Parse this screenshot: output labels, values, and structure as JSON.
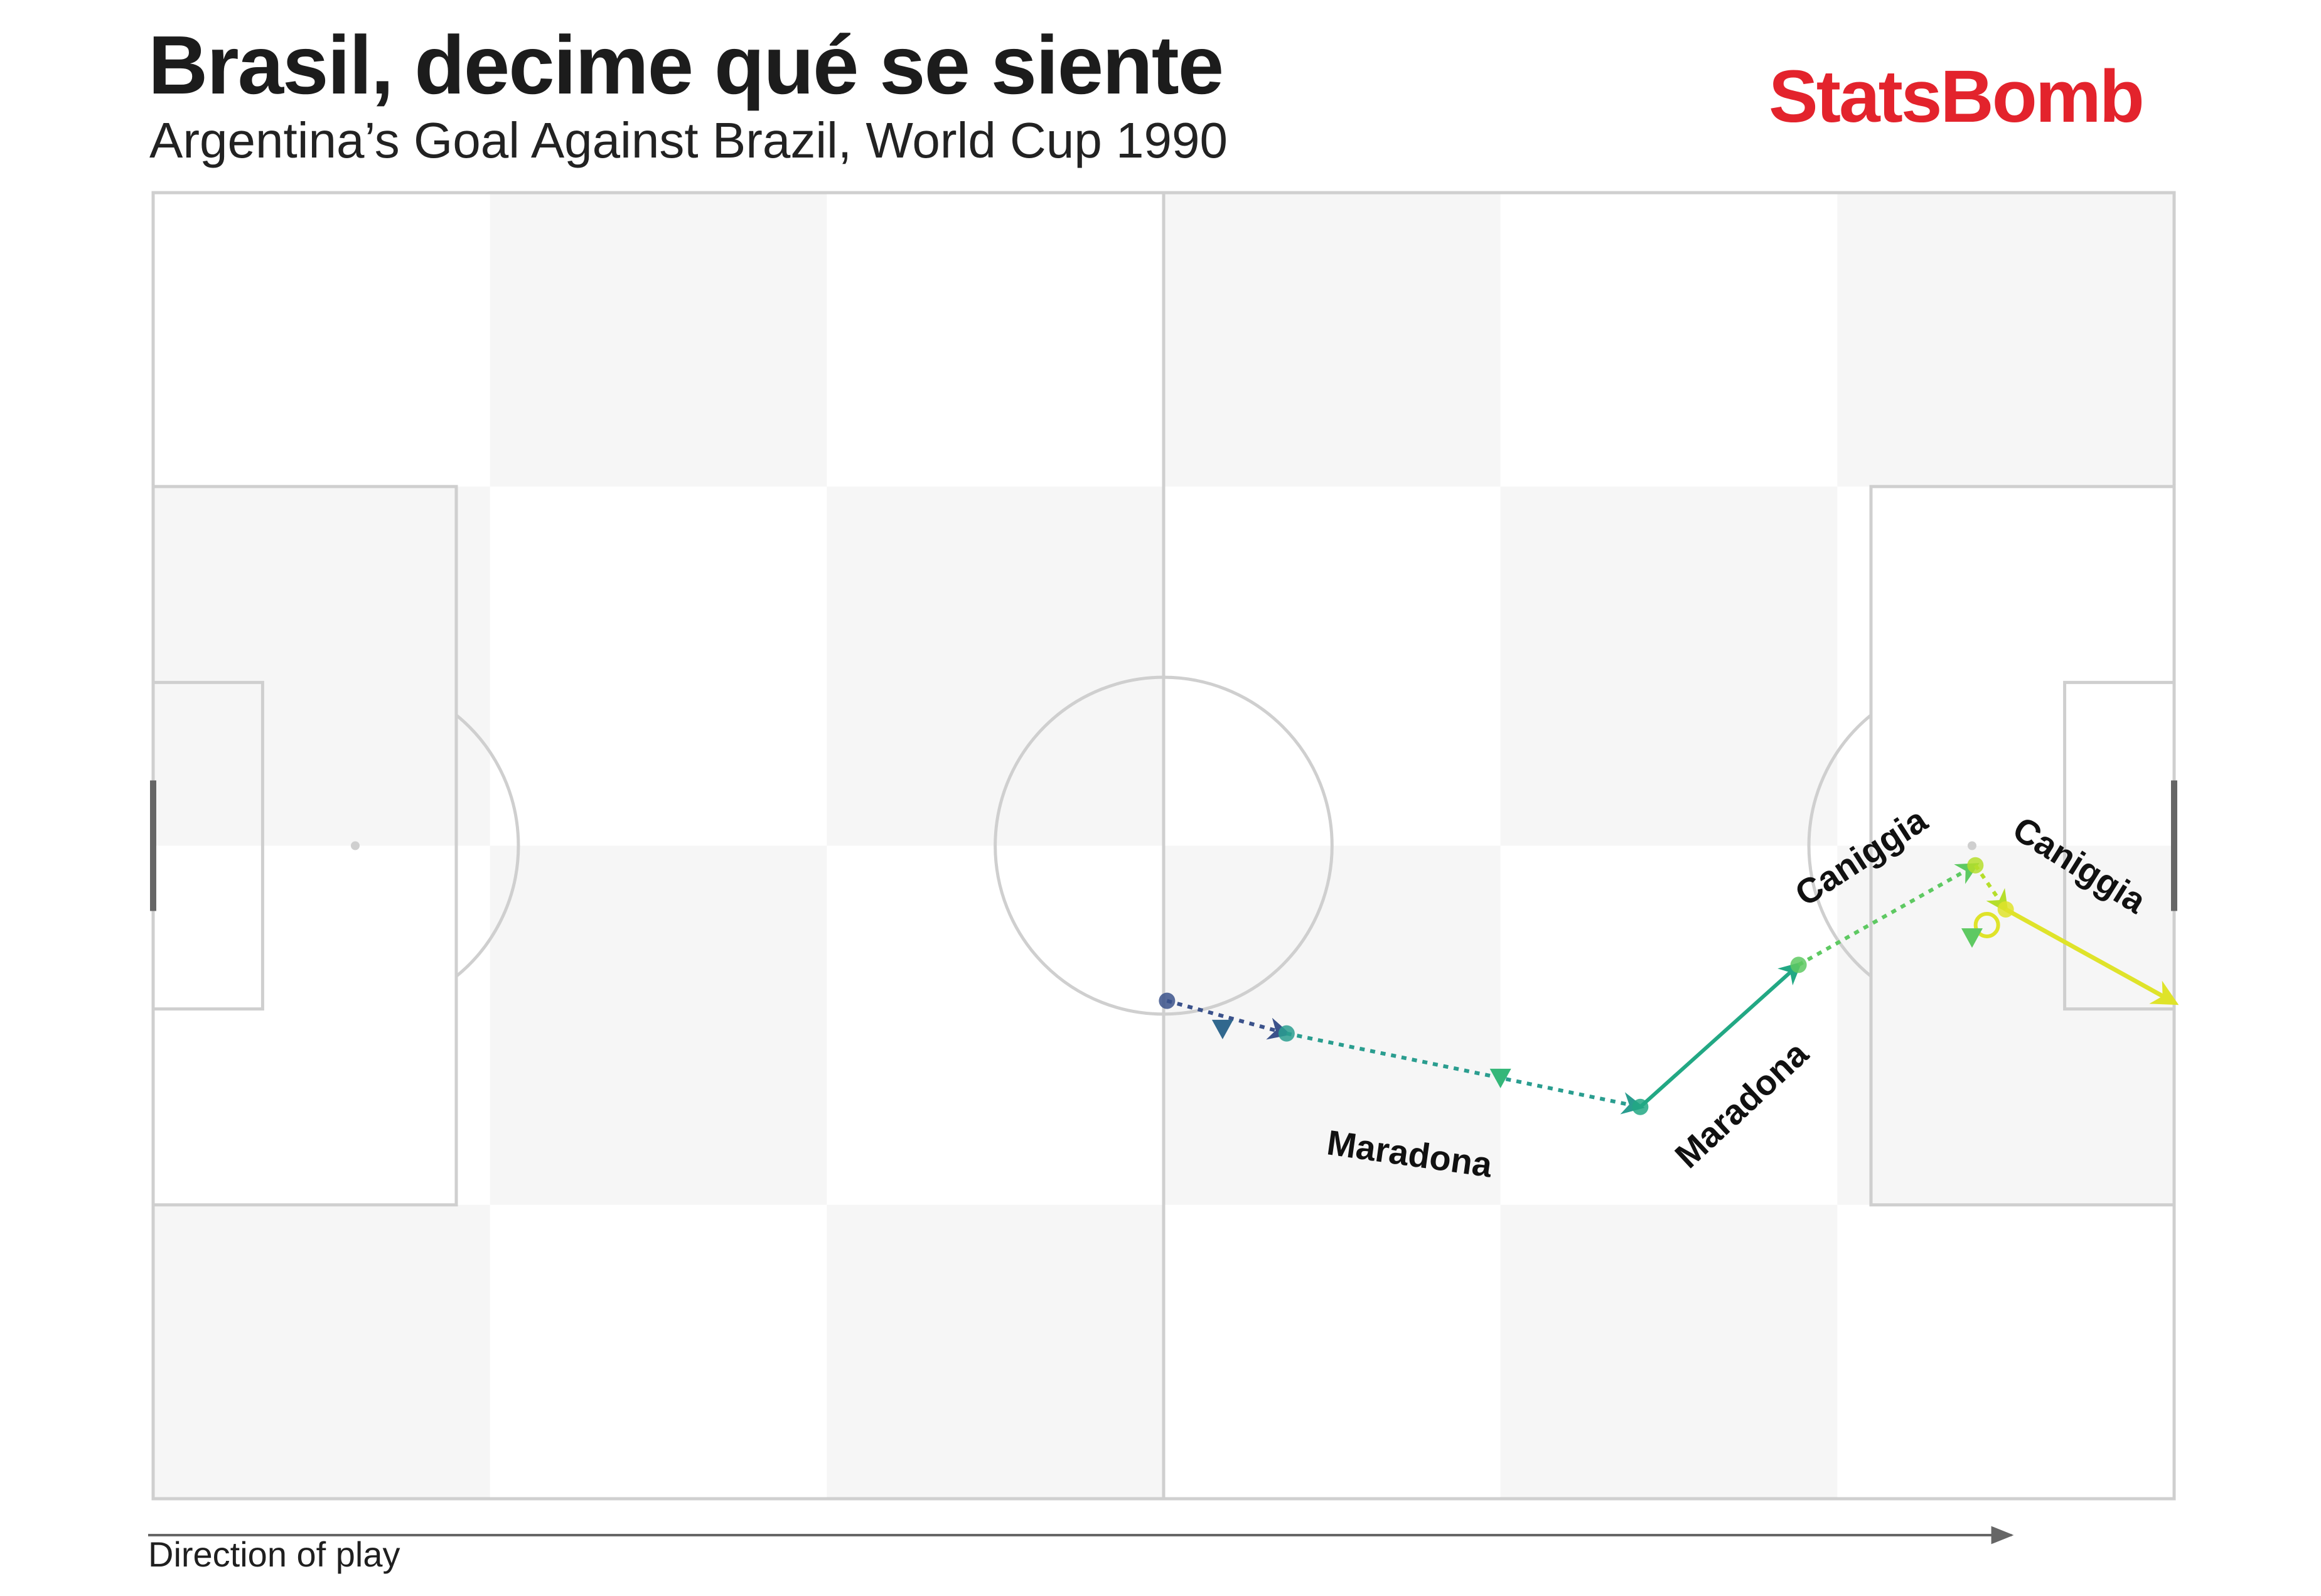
{
  "header": {
    "title": "Brasil, decime qué se siente",
    "subtitle": "Argentina’s Goal Against Brazil, World Cup 1990",
    "logo_text": "StatsBomb",
    "logo_color": "#e3232c"
  },
  "footer": {
    "direction_label": "Direction of play"
  },
  "pitch": {
    "length": 120,
    "width": 80,
    "line_color": "#cfcfcf",
    "stripe_color": "#f6f6f6",
    "grass_color": "#ffffff"
  },
  "chart_data": {
    "type": "pass_map",
    "coordinate_system": "StatsBomb 120x80 (x toward opponent goal, y top to bottom)",
    "colormap": "viridis",
    "events": [
      {
        "type": "carry",
        "player": "Maradona",
        "start": [
          60.2,
          49.5
        ],
        "end": [
          67.3,
          51.5
        ],
        "color": "#3b528b"
      },
      {
        "type": "carry",
        "player": "Maradona",
        "start": [
          67.3,
          51.5
        ],
        "end": [
          88.3,
          56.0
        ],
        "color": "#2a9d8f"
      },
      {
        "type": "pass",
        "player": "Maradona",
        "start": [
          88.3,
          56.0
        ],
        "end": [
          97.7,
          47.3
        ],
        "color": "#22a884"
      },
      {
        "type": "carry",
        "player": "Caniggia",
        "start": [
          97.7,
          47.3
        ],
        "end": [
          108.2,
          41.2
        ],
        "color": "#5ec962"
      },
      {
        "type": "carry",
        "player": "Caniggia",
        "start": [
          108.2,
          41.2
        ],
        "end": [
          110.0,
          43.9
        ],
        "color": "#b5de2b"
      },
      {
        "type": "shot",
        "player": "Caniggia",
        "start": [
          110.0,
          43.9
        ],
        "end": [
          120.0,
          49.6
        ],
        "color": "#dfe32a"
      }
    ],
    "duels": [
      {
        "pos": [
          63.5,
          51.2
        ],
        "color": "#31688e"
      },
      {
        "pos": [
          80.0,
          54.2
        ],
        "color": "#35b779"
      },
      {
        "pos": [
          108.0,
          45.6
        ],
        "color": "#5ec962"
      }
    ],
    "player_labels": [
      {
        "text": "Maradona",
        "pos": [
          74.5,
          59.6
        ],
        "angle": 8
      },
      {
        "text": "Maradona",
        "pos": [
          94.8,
          56.4
        ],
        "angle": -43
      },
      {
        "text": "Caniggia",
        "pos": [
          101.8,
          41.3
        ],
        "angle": -33
      },
      {
        "text": "Caniggia",
        "pos": [
          114.0,
          41.8
        ],
        "angle": 32
      }
    ]
  }
}
